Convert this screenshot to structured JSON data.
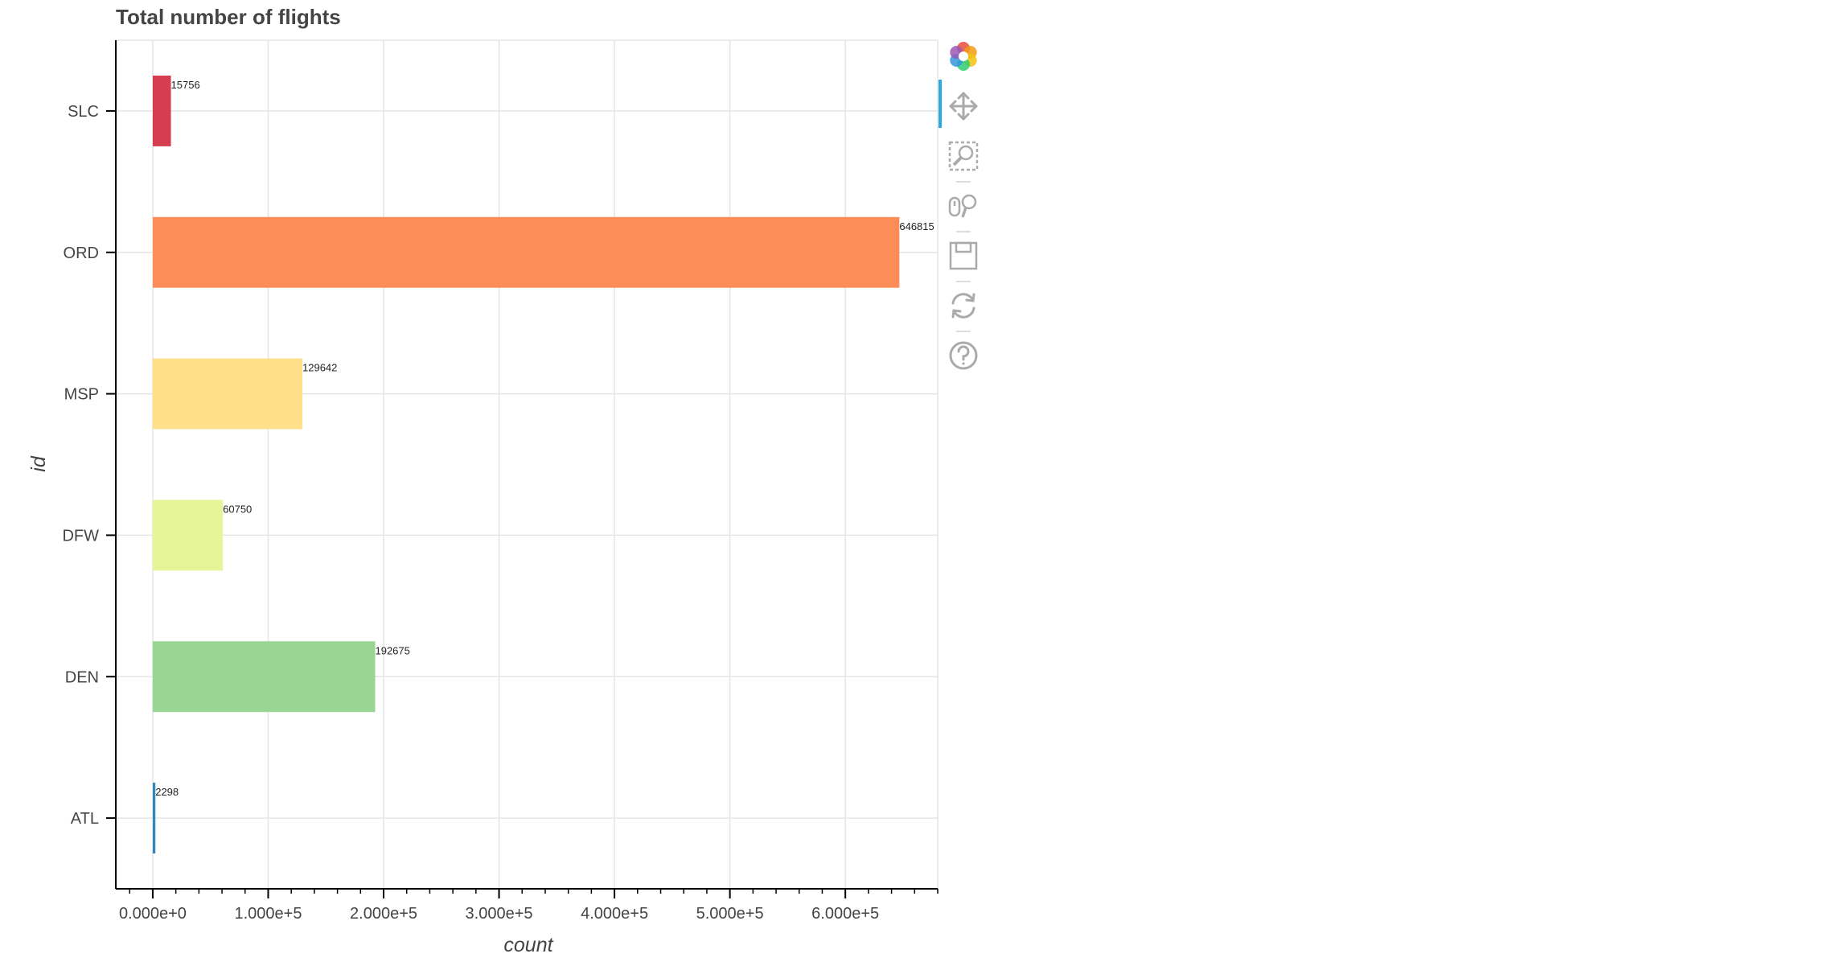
{
  "chart_data": {
    "type": "bar",
    "orientation": "horizontal",
    "title": "Total number of flights",
    "xlabel": "count",
    "ylabel": "id",
    "categories": [
      "ATL",
      "DEN",
      "DFW",
      "MSP",
      "ORD",
      "SLC"
    ],
    "values": [
      2298,
      192675,
      60750,
      129642,
      646815,
      15756
    ],
    "data_labels": [
      "2298",
      "192675",
      "60750",
      "129642",
      "646815",
      "15756"
    ],
    "colors": [
      "#3288bd",
      "#99d594",
      "#e6f598",
      "#fee08b",
      "#fc8d59",
      "#d53e4f"
    ],
    "xlim": [
      -32000,
      680000
    ],
    "xticks": [
      0,
      100000,
      200000,
      300000,
      400000,
      500000,
      600000
    ],
    "xtick_labels": [
      "0.000e+0",
      "1.000e+5",
      "2.000e+5",
      "3.000e+5",
      "4.000e+5",
      "5.000e+5",
      "6.000e+5"
    ],
    "grid": true,
    "legend": "none"
  },
  "toolbar": {
    "tools": [
      {
        "name": "bokeh-logo-icon",
        "interactable": false
      },
      {
        "name": "pan-tool-icon",
        "interactable": true,
        "active": true
      },
      {
        "name": "box-zoom-tool-icon",
        "interactable": true
      },
      {
        "name": "wheel-zoom-tool-icon",
        "interactable": true
      },
      {
        "name": "save-tool-icon",
        "interactable": true
      },
      {
        "name": "reset-tool-icon",
        "interactable": true
      },
      {
        "name": "help-tool-icon",
        "interactable": true
      }
    ],
    "active_color": "#26aae1",
    "icon_color": "#aaaaaa"
  }
}
